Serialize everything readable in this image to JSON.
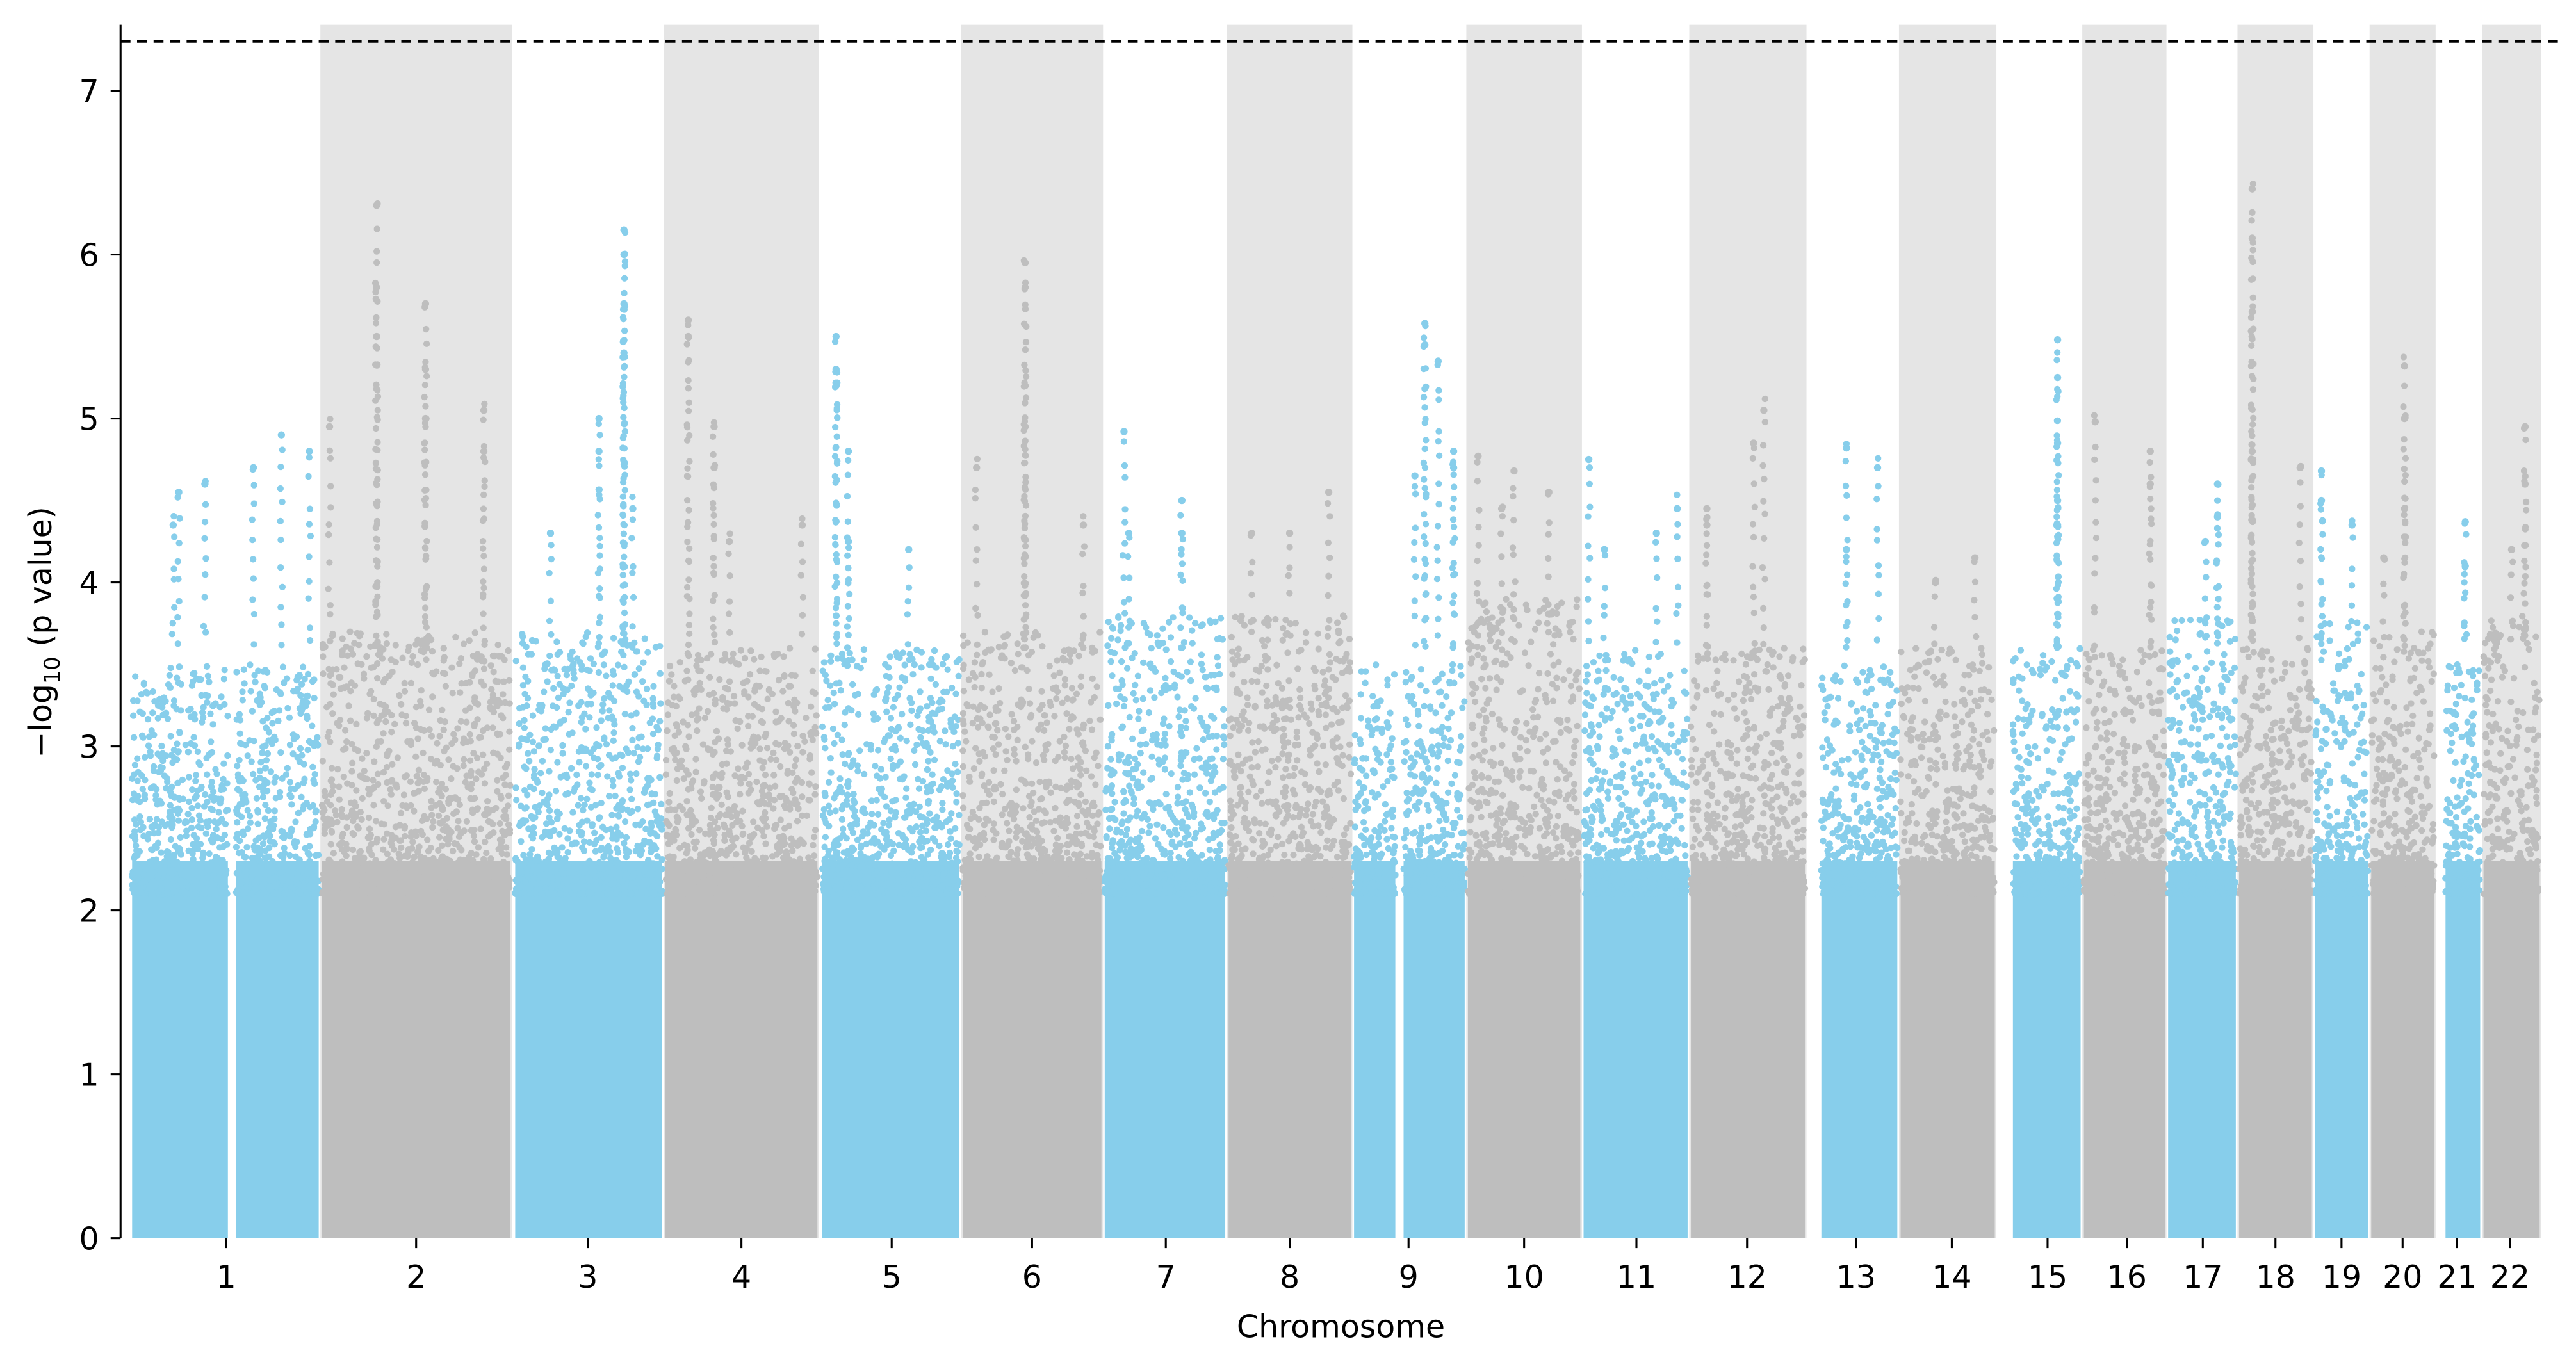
{
  "chart_data": {
    "type": "scatter",
    "subtype": "manhattan",
    "title": "",
    "xlabel": "Chromosome",
    "ylabel_prefix": "−log",
    "ylabel_sub": "10",
    "ylabel_suffix": " (p value)",
    "ylim": [
      0,
      7.4
    ],
    "yticks": [
      "0",
      "1",
      "2",
      "3",
      "4",
      "5",
      "6",
      "7"
    ],
    "significance_threshold": 7.3,
    "grid": false,
    "colors": {
      "odd": "#87CEEB",
      "even": "#BEBEBE",
      "band": "#E5E5E5",
      "threshold": "#000000"
    },
    "chromosomes": [
      {
        "label": "1",
        "bulk_max": 3.5,
        "top_hits": [
          [
            0.25,
            4.55
          ],
          [
            0.39,
            4.6
          ],
          [
            0.65,
            4.7
          ],
          [
            0.8,
            4.9
          ],
          [
            0.95,
            4.8
          ],
          [
            0.22,
            4.35
          ]
        ]
      },
      {
        "label": "2",
        "bulk_max": 3.7,
        "top_hits": [
          [
            0.29,
            6.3
          ],
          [
            0.29,
            5.8
          ],
          [
            0.29,
            5.5
          ],
          [
            0.55,
            5.7
          ],
          [
            0.55,
            5.3
          ],
          [
            0.55,
            5.0
          ],
          [
            0.86,
            5.05
          ],
          [
            0.04,
            4.95
          ],
          [
            0.86,
            4.8
          ]
        ]
      },
      {
        "label": "3",
        "bulk_max": 3.7,
        "top_hits": [
          [
            0.74,
            6.15
          ],
          [
            0.74,
            6.0
          ],
          [
            0.74,
            5.7
          ],
          [
            0.74,
            5.4
          ],
          [
            0.57,
            5.0
          ],
          [
            0.57,
            4.8
          ],
          [
            0.24,
            4.3
          ],
          [
            0.8,
            4.45
          ]
        ]
      },
      {
        "label": "4",
        "bulk_max": 3.6,
        "top_hits": [
          [
            0.15,
            5.6
          ],
          [
            0.15,
            5.5
          ],
          [
            0.32,
            4.95
          ],
          [
            0.32,
            4.7
          ],
          [
            0.9,
            4.35
          ],
          [
            0.42,
            4.25
          ]
        ]
      },
      {
        "label": "5",
        "bulk_max": 3.6,
        "top_hits": [
          [
            0.1,
            5.5
          ],
          [
            0.1,
            5.3
          ],
          [
            0.1,
            5.2
          ],
          [
            0.19,
            4.8
          ],
          [
            0.63,
            4.2
          ],
          [
            0.19,
            4.25
          ]
        ]
      },
      {
        "label": "6",
        "bulk_max": 3.7,
        "top_hits": [
          [
            0.45,
            5.95
          ],
          [
            0.45,
            5.8
          ],
          [
            0.45,
            5.2
          ],
          [
            0.45,
            4.95
          ],
          [
            0.1,
            4.7
          ],
          [
            0.87,
            4.35
          ]
        ]
      },
      {
        "label": "7",
        "bulk_max": 3.8,
        "top_hits": [
          [
            0.16,
            4.92
          ],
          [
            0.64,
            4.5
          ],
          [
            0.64,
            4.3
          ],
          [
            0.2,
            4.3
          ]
        ]
      },
      {
        "label": "8",
        "bulk_max": 3.8,
        "top_hits": [
          [
            0.82,
            4.55
          ],
          [
            0.19,
            4.3
          ],
          [
            0.5,
            4.3
          ]
        ]
      },
      {
        "label": "9",
        "bulk_max": 3.5,
        "top_hits": [
          [
            0.64,
            5.58
          ],
          [
            0.64,
            5.45
          ],
          [
            0.76,
            5.35
          ],
          [
            0.9,
            4.8
          ],
          [
            0.9,
            4.7
          ],
          [
            0.55,
            4.65
          ]
        ]
      },
      {
        "label": "10",
        "bulk_max": 3.9,
        "top_hits": [
          [
            0.09,
            4.77
          ],
          [
            0.41,
            4.68
          ],
          [
            0.72,
            4.55
          ],
          [
            0.3,
            4.45
          ]
        ]
      },
      {
        "label": "11",
        "bulk_max": 3.6,
        "top_hits": [
          [
            0.05,
            4.75
          ],
          [
            0.9,
            4.45
          ],
          [
            0.7,
            4.3
          ],
          [
            0.2,
            4.2
          ]
        ]
      },
      {
        "label": "12",
        "bulk_max": 3.6,
        "top_hits": [
          [
            0.64,
            5.05
          ],
          [
            0.55,
            4.85
          ],
          [
            0.14,
            4.45
          ],
          [
            0.14,
            4.35
          ]
        ]
      },
      {
        "label": "13",
        "bulk_max": 3.5,
        "top_hits": [
          [
            0.33,
            4.82
          ],
          [
            0.74,
            4.7
          ],
          [
            0.33,
            4.2
          ]
        ]
      },
      {
        "label": "14",
        "bulk_max": 3.6,
        "top_hits": [
          [
            0.79,
            4.15
          ],
          [
            0.37,
            4.0
          ]
        ]
      },
      {
        "label": "15",
        "bulk_max": 3.6,
        "top_hits": [
          [
            0.66,
            5.48
          ],
          [
            0.66,
            5.25
          ],
          [
            0.66,
            4.85
          ],
          [
            0.66,
            4.5
          ],
          [
            0.66,
            4.35
          ]
        ]
      },
      {
        "label": "16",
        "bulk_max": 3.6,
        "top_hits": [
          [
            0.14,
            4.98
          ],
          [
            0.82,
            4.8
          ],
          [
            0.82,
            4.6
          ]
        ]
      },
      {
        "label": "17",
        "bulk_max": 3.8,
        "top_hits": [
          [
            0.73,
            4.6
          ],
          [
            0.73,
            4.4
          ],
          [
            0.55,
            4.25
          ]
        ]
      },
      {
        "label": "18",
        "bulk_max": 3.6,
        "top_hits": [
          [
            0.18,
            6.4
          ],
          [
            0.18,
            6.1
          ],
          [
            0.18,
            5.65
          ],
          [
            0.18,
            4.8
          ],
          [
            0.84,
            4.7
          ]
        ]
      },
      {
        "label": "19",
        "bulk_max": 3.8,
        "top_hits": [
          [
            0.12,
            4.68
          ],
          [
            0.12,
            4.5
          ],
          [
            0.7,
            4.35
          ]
        ]
      },
      {
        "label": "20",
        "bulk_max": 3.7,
        "top_hits": [
          [
            0.53,
            5.32
          ],
          [
            0.53,
            5.0
          ],
          [
            0.53,
            4.45
          ],
          [
            0.2,
            4.15
          ]
        ]
      },
      {
        "label": "21",
        "bulk_max": 3.5,
        "top_hits": [
          [
            0.57,
            4.37
          ],
          [
            0.57,
            4.1
          ]
        ]
      },
      {
        "label": "22",
        "bulk_max": 3.8,
        "top_hits": [
          [
            0.74,
            4.95
          ],
          [
            0.74,
            4.6
          ],
          [
            0.5,
            4.2
          ]
        ]
      }
    ]
  }
}
